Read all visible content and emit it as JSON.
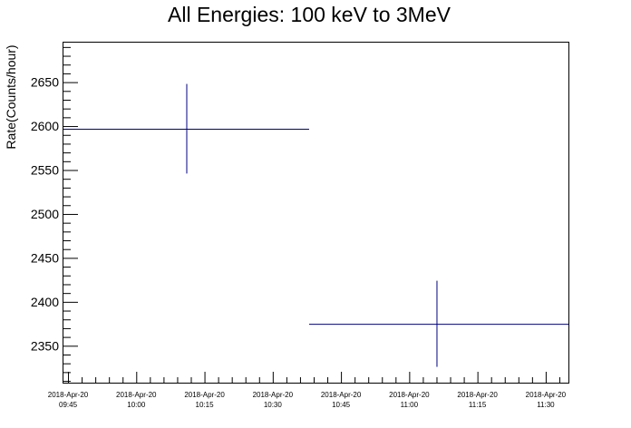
{
  "chart_data": {
    "type": "scatter",
    "title": "All Energies:  100 keV to 3MeV",
    "xlabel": "",
    "ylabel": "Rate(Counts/hour)",
    "ylim": [
      2308,
      2695
    ],
    "xlim": [
      "2018-04-20 09:44",
      "2018-04-20 11:35"
    ],
    "y_ticks": [
      2350,
      2400,
      2450,
      2500,
      2550,
      2600,
      2650
    ],
    "x_ticks": [
      {
        "date": "2018-Apr-20",
        "time": "09:45"
      },
      {
        "date": "2018-Apr-20",
        "time": "10:00"
      },
      {
        "date": "2018-Apr-20",
        "time": "10:15"
      },
      {
        "date": "2018-Apr-20",
        "time": "10:30"
      },
      {
        "date": "2018-Apr-20",
        "time": "10:45"
      },
      {
        "date": "2018-Apr-20",
        "time": "11:00"
      },
      {
        "date": "2018-Apr-20",
        "time": "11:15"
      },
      {
        "date": "2018-Apr-20",
        "time": "11:30"
      }
    ],
    "series": [
      {
        "color": "#000080",
        "points": [
          {
            "x": "2018-04-20 10:11",
            "x_start": "2018-04-20 09:44",
            "x_end": "2018-04-20 10:38",
            "y": 2597,
            "y_err": 51
          },
          {
            "x": "2018-04-20 11:06",
            "x_start": "2018-04-20 10:38",
            "x_end": "2018-04-20 11:35",
            "y": 2375,
            "y_err": 49
          }
        ]
      }
    ],
    "grid": false,
    "legend": "none"
  }
}
